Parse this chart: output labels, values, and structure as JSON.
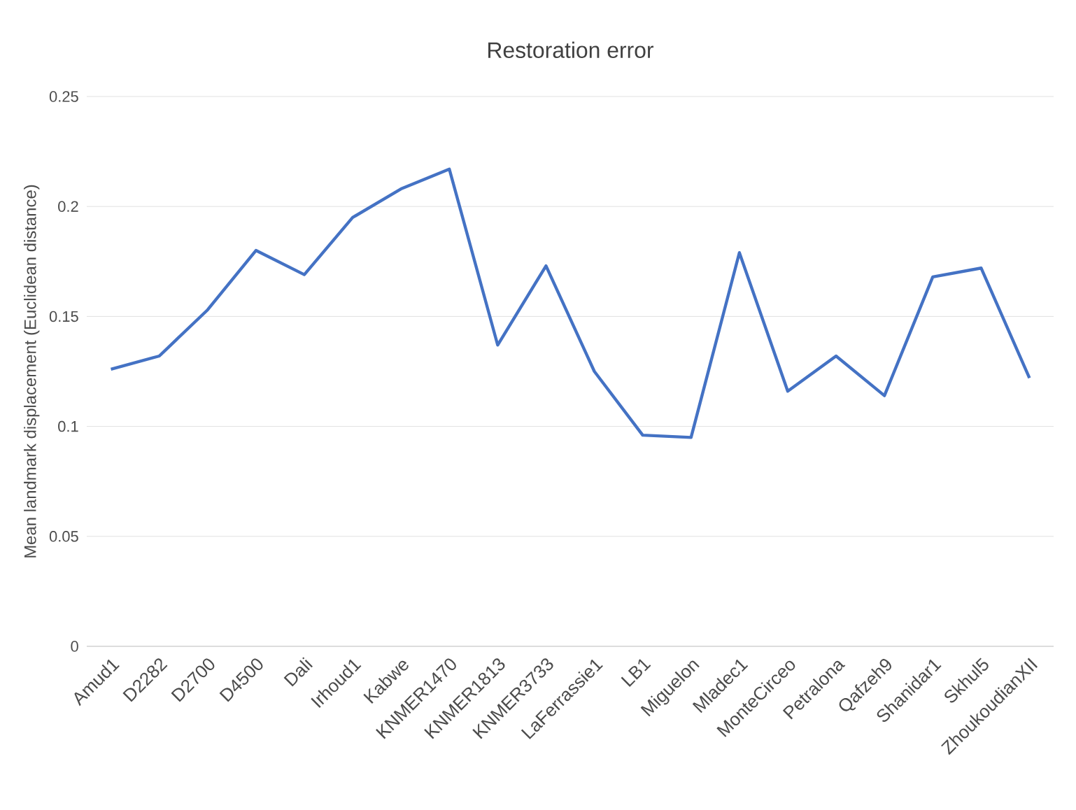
{
  "chart_data": {
    "type": "line",
    "title": "Restoration error",
    "ylabel": "Mean landmark displacement (Euclidean distance)",
    "categories": [
      "Amud1",
      "D2282",
      "D2700",
      "D4500",
      "Dali",
      "Irhoud1",
      "Kabwe",
      "KNMER1470",
      "KNMER1813",
      "KNMER3733",
      "LaFerrassie1",
      "LB1",
      "Miguelon",
      "Mladec1",
      "MonteCirceo",
      "Petralona",
      "Qafzeh9",
      "Shanidar1",
      "Skhul5",
      "ZhoukoudianXII"
    ],
    "series": [
      {
        "color": "#4472c4",
        "values": [
          0.126,
          0.132,
          0.153,
          0.18,
          0.169,
          0.195,
          0.208,
          0.217,
          0.137,
          0.173,
          0.125,
          0.096,
          0.095,
          0.179,
          0.116,
          0.132,
          0.114,
          0.168,
          0.172,
          0.122
        ]
      }
    ],
    "ylim": [
      0,
      0.25
    ],
    "yticks": [
      0,
      0.05,
      0.1,
      0.15,
      0.2,
      0.25
    ],
    "grid": "y",
    "marker": "none",
    "line_style": "solid"
  }
}
